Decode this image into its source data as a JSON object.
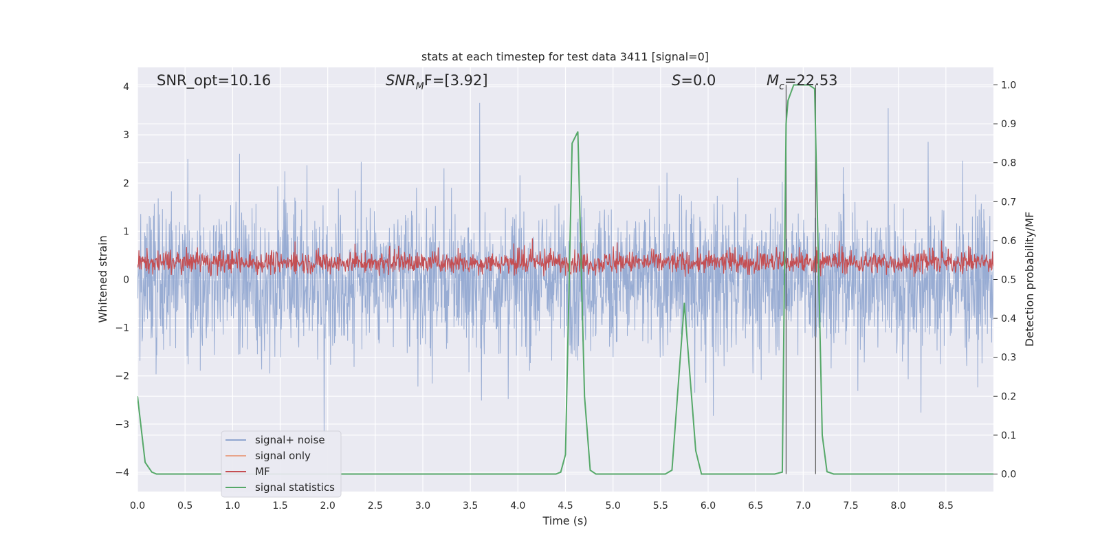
{
  "chart_data": {
    "type": "line",
    "title": "stats at each timestep for test data 3411 [signal=0]",
    "xlabel": "Time (s)",
    "ylabel": "Whitened strain",
    "y2label": "Detection probability/MF",
    "xlim": [
      0.0,
      9.0
    ],
    "ylim": [
      -4.4,
      4.4
    ],
    "y2lim": [
      -0.045,
      1.045
    ],
    "xticks": [
      "0.0",
      "0.5",
      "1.0",
      "1.5",
      "2.0",
      "2.5",
      "3.0",
      "3.5",
      "4.0",
      "4.5",
      "5.0",
      "5.5",
      "6.0",
      "6.5",
      "7.0",
      "7.5",
      "8.0",
      "8.5"
    ],
    "yticks": [
      "4",
      "3",
      "2",
      "1",
      "0",
      "−1",
      "−2",
      "−3",
      "−4"
    ],
    "y2ticks": [
      "1.0",
      "0.9",
      "0.8",
      "0.7",
      "0.6",
      "0.5",
      "0.4",
      "0.3",
      "0.2",
      "0.1",
      "0.0"
    ],
    "annotations": {
      "snr_opt": "SNR_opt=10.16",
      "snr_mf_main": "SNR",
      "snr_mf_sub": "M",
      "snr_mf_tail": "F=[3.92]",
      "s_var": "S",
      "s_val": "=0.0",
      "mc_var": "M",
      "mc_sub": "c",
      "mc_val": "=22.53"
    },
    "legend": {
      "position": "lower-left",
      "entries": [
        {
          "label": "signal+ noise",
          "color": "#8fa5cf"
        },
        {
          "label": "signal only",
          "color": "#e8a48a"
        },
        {
          "label": "MF",
          "color": "#c44e52"
        },
        {
          "label": "signal statistics",
          "color": "#55a868"
        }
      ]
    },
    "series": [
      {
        "name": "signal statistics",
        "axis": "right",
        "color": "#55a868",
        "x": [
          0.0,
          0.08,
          0.15,
          0.2,
          0.3,
          0.5,
          1.0,
          2.0,
          3.0,
          4.0,
          4.4,
          4.45,
          4.5,
          4.57,
          4.63,
          4.7,
          4.76,
          4.82,
          4.9,
          5.0,
          5.3,
          5.55,
          5.62,
          5.75,
          5.87,
          5.93,
          6.0,
          6.3,
          6.7,
          6.78,
          6.82,
          6.84,
          6.9,
          7.0,
          7.06,
          7.12,
          7.2,
          7.25,
          7.32,
          7.5,
          8.0,
          8.5,
          9.0
        ],
        "values": [
          0.2,
          0.03,
          0.005,
          0.0,
          0.0,
          0.0,
          0.0,
          0.0,
          0.0,
          0.0,
          0.0,
          0.005,
          0.05,
          0.85,
          0.88,
          0.2,
          0.01,
          0.0,
          0.0,
          0.0,
          0.0,
          0.0,
          0.01,
          0.44,
          0.06,
          0.0,
          0.0,
          0.0,
          0.0,
          0.005,
          0.9,
          0.96,
          1.0,
          1.0,
          1.0,
          0.99,
          0.1,
          0.006,
          0.0,
          0.0,
          0.0,
          0.0,
          0.0
        ]
      },
      {
        "name": "MF",
        "axis": "left",
        "color": "#c44e52",
        "baseline": 0.35,
        "range": [
          0.0,
          0.95
        ]
      },
      {
        "name": "signal+ noise",
        "axis": "left",
        "color": "#8fa5cf",
        "range": [
          -3.6,
          4.0
        ]
      }
    ],
    "vlines": [
      6.82,
      7.13
    ]
  }
}
